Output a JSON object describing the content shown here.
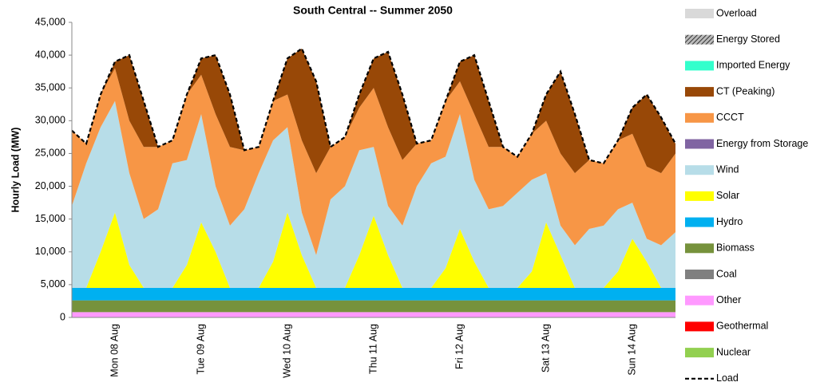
{
  "chart_data": {
    "type": "stacked_area",
    "title": "South Central -- Summer 2050",
    "y_label": "Hourly Load (MW)",
    "categories": [
      null,
      null,
      null,
      "Mon 08 Aug",
      null,
      null,
      null,
      null,
      null,
      "Tue 09 Aug",
      null,
      null,
      null,
      null,
      null,
      "Wed 10 Aug",
      null,
      null,
      null,
      null,
      null,
      "Thu 11 Aug",
      null,
      null,
      null,
      null,
      null,
      "Fri 12 Aug",
      null,
      null,
      null,
      null,
      null,
      "Sat 13 Aug",
      null,
      null,
      null,
      null,
      null,
      "Sun 14 Aug",
      null,
      null,
      null
    ],
    "ylim": [
      0,
      45000
    ],
    "yticks": [
      0,
      {
        "value": 5000,
        "label": "5,000"
      },
      {
        "value": 10000,
        "label": "10,000"
      },
      {
        "value": 15000,
        "label": "15,000"
      },
      {
        "value": 20000,
        "label": "20,000"
      },
      {
        "value": 25000,
        "label": "25,000"
      },
      {
        "value": 30000,
        "label": "30,000"
      },
      {
        "value": 35000,
        "label": "35,000"
      },
      {
        "value": 40000,
        "label": "40,000"
      },
      {
        "value": 45000,
        "label": "45,000"
      }
    ],
    "legend": "right",
    "series": [
      {
        "name": "Nuclear",
        "color": "#92d050",
        "values": [
          0,
          0,
          0,
          0,
          0,
          0,
          0,
          0,
          0,
          0,
          0,
          0,
          0,
          0,
          0,
          0,
          0,
          0,
          0,
          0,
          0,
          0,
          0,
          0,
          0,
          0,
          0,
          0,
          0,
          0,
          0,
          0,
          0,
          0,
          0,
          0,
          0,
          0,
          0,
          0,
          0,
          0,
          0
        ]
      },
      {
        "name": "Geothermal",
        "color": "#ff0000",
        "values": [
          0,
          0,
          0,
          0,
          0,
          0,
          0,
          0,
          0,
          0,
          0,
          0,
          0,
          0,
          0,
          0,
          0,
          0,
          0,
          0,
          0,
          0,
          0,
          0,
          0,
          0,
          0,
          0,
          0,
          0,
          0,
          0,
          0,
          0,
          0,
          0,
          0,
          0,
          0,
          0,
          0,
          0,
          0
        ]
      },
      {
        "name": "Other",
        "color": "#ff99ff",
        "values": [
          800,
          800,
          800,
          800,
          800,
          800,
          800,
          800,
          800,
          800,
          800,
          800,
          800,
          800,
          800,
          800,
          800,
          800,
          800,
          800,
          800,
          800,
          800,
          800,
          800,
          800,
          800,
          800,
          800,
          800,
          800,
          800,
          800,
          800,
          800,
          800,
          800,
          800,
          800,
          800,
          800,
          800,
          800
        ]
      },
      {
        "name": "Coal",
        "color": "#808080",
        "values": [
          0,
          0,
          0,
          0,
          0,
          0,
          0,
          0,
          0,
          0,
          0,
          0,
          0,
          0,
          0,
          0,
          0,
          0,
          0,
          0,
          0,
          0,
          0,
          0,
          0,
          0,
          0,
          0,
          0,
          0,
          0,
          0,
          0,
          0,
          0,
          0,
          0,
          0,
          0,
          0,
          0,
          0,
          0
        ]
      },
      {
        "name": "Biomass",
        "color": "#76923c",
        "values": [
          1800,
          1800,
          1800,
          1800,
          1800,
          1800,
          1800,
          1800,
          1800,
          1800,
          1800,
          1800,
          1800,
          1800,
          1800,
          1800,
          1800,
          1800,
          1800,
          1800,
          1800,
          1800,
          1800,
          1800,
          1800,
          1800,
          1800,
          1800,
          1800,
          1800,
          1800,
          1800,
          1800,
          1800,
          1800,
          1800,
          1800,
          1800,
          1800,
          1800,
          1800,
          1800,
          1800
        ]
      },
      {
        "name": "Hydro",
        "color": "#00b0f0",
        "values": [
          1900,
          1900,
          1900,
          1900,
          1900,
          1900,
          1900,
          1900,
          1900,
          1900,
          1900,
          1900,
          1900,
          1900,
          1900,
          1900,
          1900,
          1900,
          1900,
          1900,
          1900,
          1900,
          1900,
          1900,
          1900,
          1900,
          1900,
          1900,
          1900,
          1900,
          1900,
          1900,
          1900,
          1900,
          1900,
          1900,
          1900,
          1900,
          1900,
          1900,
          1900,
          1900,
          1900
        ]
      },
      {
        "name": "Solar",
        "color": "#ffff00",
        "values": [
          0,
          0,
          5500,
          11500,
          3500,
          0,
          0,
          0,
          3500,
          10000,
          5500,
          0,
          0,
          0,
          4000,
          11500,
          5000,
          0,
          0,
          0,
          5000,
          11000,
          5000,
          0,
          0,
          0,
          3000,
          9000,
          4000,
          0,
          0,
          0,
          2500,
          10000,
          5000,
          0,
          0,
          0,
          2500,
          7500,
          4000,
          0,
          0
        ]
      },
      {
        "name": "Wind",
        "color": "#b7dde8",
        "values": [
          12500,
          19000,
          19000,
          17000,
          14000,
          10500,
          12000,
          19000,
          16000,
          16500,
          10000,
          9500,
          12000,
          17500,
          18500,
          13000,
          6500,
          5000,
          13500,
          15500,
          16000,
          10500,
          7500,
          9500,
          15500,
          19000,
          17000,
          17500,
          12500,
          12000,
          12500,
          14500,
          14000,
          7500,
          4500,
          6500,
          9000,
          9500,
          9500,
          5500,
          3500,
          6500,
          8500
        ]
      },
      {
        "name": "Energy from Storage",
        "color": "#8064a2",
        "values": [
          0,
          0,
          0,
          0,
          0,
          0,
          0,
          0,
          0,
          0,
          0,
          0,
          0,
          0,
          0,
          0,
          0,
          0,
          0,
          0,
          0,
          0,
          0,
          0,
          0,
          0,
          0,
          0,
          0,
          0,
          0,
          0,
          0,
          0,
          0,
          0,
          0,
          0,
          0,
          0,
          0,
          0,
          0
        ]
      },
      {
        "name": "CCCT",
        "color": "#f79646",
        "values": [
          11500,
          3000,
          5000,
          5000,
          8000,
          11000,
          9500,
          3500,
          10000,
          6000,
          11000,
          12000,
          9000,
          4000,
          6000,
          5000,
          11000,
          12500,
          8000,
          7500,
          6500,
          9000,
          12000,
          10000,
          6500,
          3500,
          8500,
          5000,
          10000,
          9500,
          9000,
          5500,
          7000,
          8000,
          11000,
          11000,
          10500,
          9500,
          10500,
          10500,
          11000,
          11000,
          12000
        ]
      },
      {
        "name": "CT (Peaking)",
        "color": "#984807",
        "values": [
          0,
          0,
          0,
          1000,
          10000,
          7000,
          0,
          0,
          0,
          2500,
          9000,
          8000,
          0,
          0,
          0,
          5500,
          14000,
          14000,
          0,
          0,
          2000,
          4500,
          11500,
          10000,
          0,
          0,
          0,
          3000,
          9000,
          7000,
          0,
          0,
          0,
          4000,
          12500,
          9000,
          0,
          0,
          0,
          4000,
          11000,
          8500,
          1500
        ]
      },
      {
        "name": "Imported Energy",
        "color": "#33ffcc",
        "values": [
          0,
          0,
          0,
          0,
          0,
          0,
          0,
          0,
          0,
          0,
          0,
          0,
          0,
          0,
          0,
          0,
          0,
          0,
          0,
          0,
          0,
          0,
          0,
          0,
          0,
          0,
          0,
          0,
          0,
          0,
          0,
          0,
          0,
          0,
          0,
          0,
          0,
          0,
          0,
          0,
          0,
          0,
          0
        ]
      },
      {
        "name": "Energy Stored",
        "color": "#595959",
        "pattern": "hatch",
        "values": [
          0,
          0,
          0,
          0,
          0,
          0,
          0,
          0,
          0,
          0,
          0,
          0,
          0,
          0,
          0,
          0,
          0,
          0,
          0,
          0,
          0,
          0,
          0,
          0,
          0,
          0,
          0,
          0,
          0,
          0,
          0,
          0,
          0,
          0,
          0,
          0,
          0,
          0,
          0,
          0,
          0,
          0,
          0
        ]
      },
      {
        "name": "Overload",
        "color": "#d9d9d9",
        "values": [
          0,
          0,
          0,
          0,
          0,
          0,
          0,
          0,
          0,
          0,
          0,
          0,
          0,
          0,
          0,
          0,
          0,
          0,
          0,
          0,
          0,
          0,
          0,
          0,
          0,
          0,
          0,
          0,
          0,
          0,
          0,
          0,
          0,
          0,
          0,
          0,
          0,
          0,
          0,
          0,
          0,
          0,
          0
        ]
      },
      {
        "name": "Load",
        "color": "#000000",
        "kind": "line",
        "dash": true,
        "values": [
          28500,
          26500,
          34000,
          39000,
          40000,
          33000,
          26000,
          27000,
          34000,
          39500,
          40000,
          34000,
          25500,
          26000,
          33000,
          39500,
          41000,
          36000,
          26000,
          27500,
          34000,
          39500,
          40500,
          34000,
          26500,
          27000,
          33000,
          39000,
          40000,
          33000,
          26000,
          24500,
          28000,
          34000,
          37500,
          31000,
          24000,
          23500,
          27000,
          32000,
          34000,
          30500,
          26500
        ]
      }
    ]
  }
}
